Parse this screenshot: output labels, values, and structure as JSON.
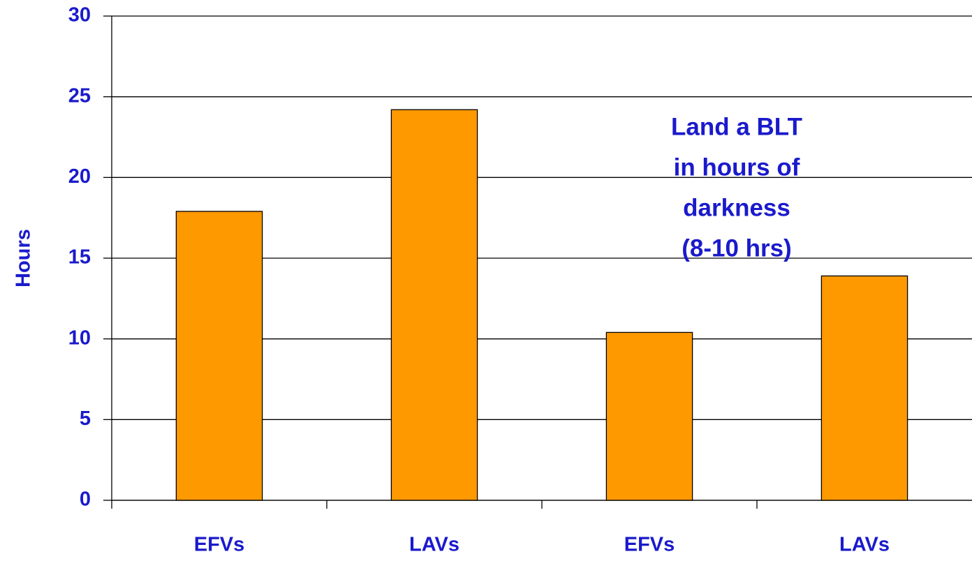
{
  "chart_data": {
    "type": "bar",
    "y_label": "Hours",
    "annotation": [
      "Land a BLT",
      "in hours of",
      "darkness",
      "(8-10 hrs)"
    ],
    "categories": [
      "EFVs",
      "LAVs",
      "EFVs",
      "LAVs"
    ],
    "values": [
      17.9,
      24.2,
      10.4,
      13.9
    ],
    "color": "#ff9900",
    "ylim": [
      0,
      30
    ],
    "yticks": [
      0,
      5,
      10,
      15,
      20,
      25,
      30
    ],
    "grid": true
  }
}
